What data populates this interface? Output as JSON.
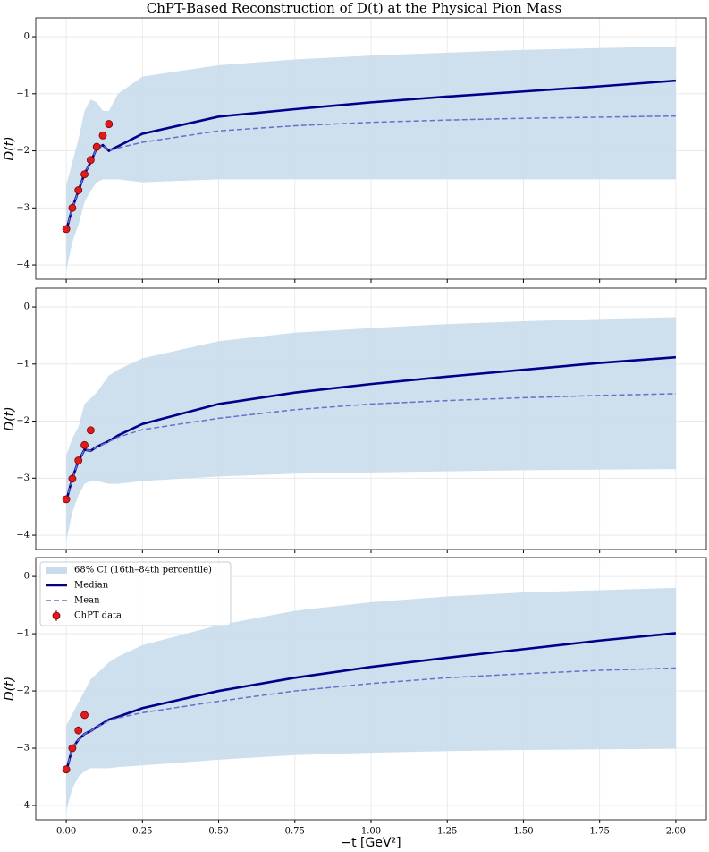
{
  "chart_data": [
    {
      "type": "line",
      "title": "ChPT-Based Reconstruction of D(t) at the Physical Pion Mass",
      "ylabel": "D(t)",
      "x": [
        0,
        0.02,
        0.04,
        0.06,
        0.08,
        0.1,
        0.12,
        0.14,
        0.17,
        0.25,
        0.5,
        0.75,
        1,
        1.25,
        1.5,
        1.75,
        2
      ],
      "band": {
        "color": "#c9dbec",
        "upper": [
          -2.6,
          -2.2,
          -1.8,
          -1.3,
          -1.1,
          -1.15,
          -1.3,
          -1.3,
          -1.0,
          -0.7,
          -0.5,
          -0.4,
          -0.33,
          -0.28,
          -0.23,
          -0.2,
          -0.17
        ],
        "lower": [
          -4.1,
          -3.6,
          -3.3,
          -2.9,
          -2.7,
          -2.55,
          -2.5,
          -2.5,
          -2.5,
          -2.55,
          -2.5,
          -2.5,
          -2.5,
          -2.5,
          -2.5,
          -2.5,
          -2.5
        ]
      },
      "series": [
        {
          "color": "#00008b",
          "style": "solid",
          "values": [
            -3.4,
            -3.0,
            -2.7,
            -2.4,
            -2.2,
            -1.95,
            -1.9,
            -2.0,
            -1.92,
            -1.7,
            -1.4,
            -1.27,
            -1.15,
            -1.05,
            -0.96,
            -0.87,
            -0.77
          ]
        },
        {
          "color": "#6a6fc8",
          "style": "dashed",
          "values": [
            -3.4,
            -3.0,
            -2.7,
            -2.4,
            -2.2,
            -1.95,
            -1.9,
            -2.0,
            -1.95,
            -1.85,
            -1.65,
            -1.56,
            -1.5,
            -1.46,
            -1.43,
            -1.41,
            -1.39
          ]
        }
      ],
      "points": {
        "color": "#e31a1c",
        "x": [
          0,
          0.02,
          0.04,
          0.06,
          0.08,
          0.1,
          0.12,
          0.14
        ],
        "values": [
          -3.37,
          -3.0,
          -2.69,
          -2.41,
          -2.16,
          -1.93,
          -1.73,
          -1.53
        ]
      },
      "xlim": [
        -0.1,
        2.1
      ],
      "ylim": [
        -4.25,
        0.33
      ],
      "xticks": [
        0,
        0.25,
        0.5,
        0.75,
        1,
        1.25,
        1.5,
        1.75,
        2
      ],
      "xtick_labels": false,
      "yticks": [
        0,
        {
          "value": -1,
          "label": "−1"
        },
        {
          "value": -2,
          "label": "−2"
        },
        {
          "value": -3,
          "label": "−3"
        },
        {
          "value": -4,
          "label": "−4"
        }
      ],
      "grid": true
    },
    {
      "type": "line",
      "ylabel": "D(t)",
      "x": [
        0,
        0.02,
        0.04,
        0.06,
        0.08,
        0.1,
        0.14,
        0.17,
        0.25,
        0.5,
        0.75,
        1,
        1.25,
        1.5,
        1.75,
        2
      ],
      "band": {
        "color": "#c9dbec",
        "upper": [
          -2.6,
          -2.3,
          -2.1,
          -1.7,
          -1.6,
          -1.5,
          -1.2,
          -1.1,
          -0.9,
          -0.6,
          -0.45,
          -0.37,
          -0.3,
          -0.25,
          -0.21,
          -0.18
        ],
        "lower": [
          -4.1,
          -3.6,
          -3.3,
          -3.1,
          -3.05,
          -3.05,
          -3.1,
          -3.1,
          -3.05,
          -2.97,
          -2.92,
          -2.9,
          -2.88,
          -2.86,
          -2.85,
          -2.84
        ]
      },
      "series": [
        {
          "color": "#00008b",
          "style": "solid",
          "values": [
            -3.4,
            -3.0,
            -2.7,
            -2.5,
            -2.52,
            -2.45,
            -2.35,
            -2.25,
            -2.05,
            -1.7,
            -1.5,
            -1.35,
            -1.22,
            -1.1,
            -0.98,
            -0.88
          ]
        },
        {
          "color": "#6a6fc8",
          "style": "dashed",
          "values": [
            -3.4,
            -3.0,
            -2.7,
            -2.5,
            -2.52,
            -2.45,
            -2.36,
            -2.28,
            -2.15,
            -1.95,
            -1.8,
            -1.7,
            -1.64,
            -1.59,
            -1.55,
            -1.52
          ]
        }
      ],
      "points": {
        "color": "#e31a1c",
        "x": [
          0,
          0.02,
          0.04,
          0.06,
          0.08
        ],
        "values": [
          -3.37,
          -3.01,
          -2.69,
          -2.42,
          -2.16
        ]
      },
      "xlim": [
        -0.1,
        2.1
      ],
      "ylim": [
        -4.25,
        0.33
      ],
      "xticks": [
        0,
        0.25,
        0.5,
        0.75,
        1,
        1.25,
        1.5,
        1.75,
        2
      ],
      "xtick_labels": false,
      "yticks": [
        0,
        {
          "value": -1,
          "label": "−1"
        },
        {
          "value": -2,
          "label": "−2"
        },
        {
          "value": -3,
          "label": "−3"
        },
        {
          "value": -4,
          "label": "−4"
        }
      ],
      "grid": true
    },
    {
      "type": "line",
      "ylabel": "D(t)",
      "xlabel": "−t [GeV²]",
      "x": [
        0,
        0.02,
        0.04,
        0.06,
        0.08,
        0.1,
        0.14,
        0.17,
        0.25,
        0.5,
        0.75,
        1,
        1.25,
        1.5,
        1.75,
        2
      ],
      "band": {
        "name": "68% CI (16th–84th percentile)",
        "color": "#c9dbec",
        "upper": [
          -2.6,
          -2.4,
          -2.2,
          -2.0,
          -1.8,
          -1.7,
          -1.5,
          -1.4,
          -1.2,
          -0.85,
          -0.6,
          -0.45,
          -0.35,
          -0.28,
          -0.24,
          -0.2
        ],
        "lower": [
          -4.1,
          -3.7,
          -3.5,
          -3.4,
          -3.35,
          -3.35,
          -3.35,
          -3.33,
          -3.3,
          -3.2,
          -3.12,
          -3.08,
          -3.05,
          -3.03,
          -3.02,
          -3.01
        ]
      },
      "series": [
        {
          "name": "Median",
          "color": "#00008b",
          "style": "solid",
          "values": [
            -3.4,
            -3.0,
            -2.85,
            -2.75,
            -2.7,
            -2.63,
            -2.5,
            -2.45,
            -2.3,
            -2.0,
            -1.77,
            -1.58,
            -1.42,
            -1.27,
            -1.12,
            -0.99
          ]
        },
        {
          "name": "Mean",
          "color": "#6a6fc8",
          "style": "dashed",
          "values": [
            -3.4,
            -3.0,
            -2.85,
            -2.75,
            -2.7,
            -2.63,
            -2.52,
            -2.47,
            -2.38,
            -2.18,
            -2.0,
            -1.87,
            -1.77,
            -1.7,
            -1.64,
            -1.6
          ]
        }
      ],
      "points": {
        "name": "ChPT data",
        "color": "#e31a1c",
        "x": [
          0,
          0.02,
          0.04,
          0.06
        ],
        "values": [
          -3.37,
          -3.0,
          -2.69,
          -2.42
        ]
      },
      "legend": "upper left",
      "xlim": [
        -0.1,
        2.1
      ],
      "ylim": [
        -4.25,
        0.33
      ],
      "xticks": [
        {
          "value": 0,
          "label": "0.00"
        },
        {
          "value": 0.25,
          "label": "0.25"
        },
        {
          "value": 0.5,
          "label": "0.50"
        },
        {
          "value": 0.75,
          "label": "0.75"
        },
        {
          "value": 1,
          "label": "1.00"
        },
        {
          "value": 1.25,
          "label": "1.25"
        },
        {
          "value": 1.5,
          "label": "1.50"
        },
        {
          "value": 1.75,
          "label": "1.75"
        },
        {
          "value": 2,
          "label": "2.00"
        }
      ],
      "xtick_labels": true,
      "yticks": [
        0,
        {
          "value": -1,
          "label": "−1"
        },
        {
          "value": -2,
          "label": "−2"
        },
        {
          "value": -3,
          "label": "−3"
        },
        {
          "value": -4,
          "label": "−4"
        }
      ],
      "grid": true
    }
  ]
}
